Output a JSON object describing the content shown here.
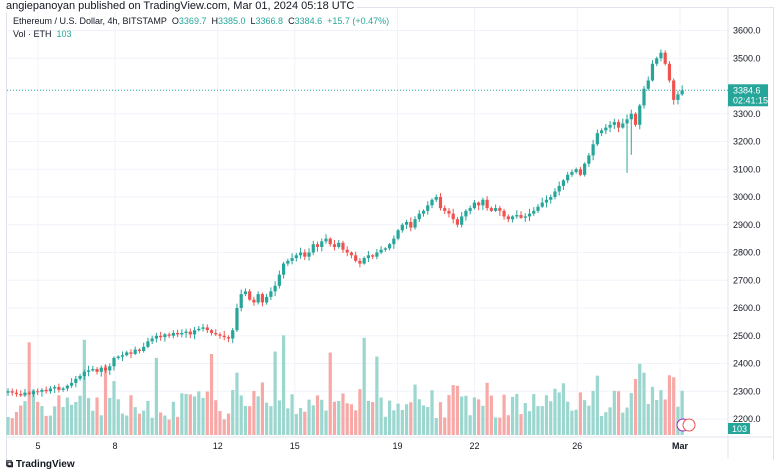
{
  "publisher": "angiepanoyan published on TradingView.com, Mar 01, 2024 05:18 UTC",
  "legend": {
    "symbol": "Ethereum / U.S. Dollar, 4h, BITSTAMP",
    "o_label": "O",
    "o": "3369.7",
    "h_label": "H",
    "h": "3385.0",
    "l_label": "L",
    "l": "3366.8",
    "c_label": "C",
    "c": "3384.6",
    "change": "+15.7 (+0.47%)",
    "vol_label": "Vol · ETH",
    "vol": "103"
  },
  "last_price": "3384.6",
  "countdown": "02:41:15",
  "vol_badge": "103",
  "logo": "TradingView",
  "colors": {
    "up": "#26a69a",
    "down": "#ef5350",
    "vol_up": "#9bd6cf",
    "vol_down": "#f7a9a7"
  },
  "chart_data": {
    "type": "candlestick",
    "title": "Ethereum / U.S. Dollar, 4h, BITSTAMP",
    "ylim": [
      2200,
      3600
    ],
    "y_ticks": [
      "3600.0",
      "3500.0",
      "3300.0",
      "3200.0",
      "3100.0",
      "3000.0",
      "2900.0",
      "2800.0",
      "2700.0",
      "2600.0",
      "2500.0",
      "2400.0",
      "2300.0",
      "2200.0"
    ],
    "x_ticks": [
      {
        "label": "5",
        "day": 5
      },
      {
        "label": "8",
        "day": 8
      },
      {
        "label": "12",
        "day": 12
      },
      {
        "label": "15",
        "day": 15
      },
      {
        "label": "19",
        "day": 19
      },
      {
        "label": "22",
        "day": 22
      },
      {
        "label": "26",
        "day": 26
      },
      {
        "label": "Mar",
        "day": 30
      }
    ],
    "start_day": 3.67,
    "closes": [
      2300,
      2295,
      2290,
      2285,
      2295,
      2290,
      2300,
      2298,
      2305,
      2300,
      2310,
      2315,
      2305,
      2310,
      2320,
      2330,
      2345,
      2355,
      2370,
      2375,
      2380,
      2370,
      2385,
      2375,
      2390,
      2420,
      2425,
      2430,
      2440,
      2435,
      2450,
      2445,
      2460,
      2480,
      2490,
      2500,
      2495,
      2505,
      2500,
      2510,
      2505,
      2510,
      2515,
      2505,
      2520,
      2525,
      2530,
      2520,
      2510,
      2505,
      2500,
      2495,
      2490,
      2520,
      2600,
      2650,
      2660,
      2630,
      2620,
      2650,
      2620,
      2640,
      2660,
      2680,
      2720,
      2760,
      2770,
      2780,
      2790,
      2800,
      2785,
      2800,
      2830,
      2820,
      2840,
      2850,
      2830,
      2820,
      2835,
      2810,
      2800,
      2790,
      2770,
      2760,
      2780,
      2790,
      2785,
      2800,
      2810,
      2815,
      2830,
      2850,
      2880,
      2900,
      2910,
      2890,
      2920,
      2940,
      2950,
      2970,
      2990,
      3000,
      2960,
      2950,
      2940,
      2920,
      2900,
      2930,
      2950,
      2960,
      2980,
      2970,
      2990,
      2960,
      2950,
      2960,
      2950,
      2930,
      2920,
      2930,
      2935,
      2925,
      2930,
      2940,
      2950,
      2965,
      2980,
      2990,
      3000,
      3020,
      3040,
      3060,
      3080,
      3090,
      3100,
      3080,
      3120,
      3150,
      3190,
      3230,
      3240,
      3250,
      3260,
      3270,
      3250,
      3265,
      3280,
      3300,
      3260,
      3330,
      3390,
      3420,
      3480,
      3500,
      3520,
      3480,
      3420,
      3350,
      3369.7,
      3384.6
    ]
  }
}
